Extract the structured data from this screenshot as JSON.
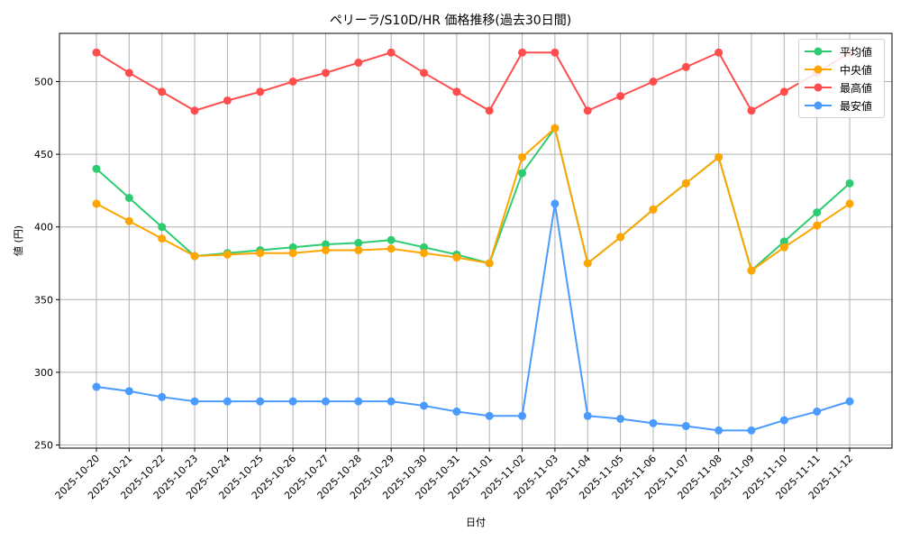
{
  "chart_data": {
    "type": "line",
    "title": "ペリーラ/S10D/HR 価格推移(過去30日間)",
    "xlabel": "日付",
    "ylabel": "値 (円)",
    "ylim": [
      245,
      533
    ],
    "yticks": [
      250,
      300,
      350,
      400,
      450,
      500
    ],
    "grid": true,
    "legend_position": "upper right",
    "categories": [
      "2025-10-20",
      "2025-10-21",
      "2025-10-22",
      "2025-10-23",
      "2025-10-24",
      "2025-10-25",
      "2025-10-26",
      "2025-10-27",
      "2025-10-28",
      "2025-10-29",
      "2025-10-30",
      "2025-10-31",
      "2025-11-01",
      "2025-11-02",
      "2025-11-03",
      "2025-11-04",
      "2025-11-05",
      "2025-11-06",
      "2025-11-07",
      "2025-11-08",
      "2025-11-09",
      "2025-11-10",
      "2025-11-11",
      "2025-11-12"
    ],
    "series": [
      {
        "name": "平均値",
        "color": "#2ecc71",
        "values": [
          440,
          420,
          400,
          380,
          382,
          384,
          386,
          388,
          389,
          391,
          386,
          381,
          375,
          437,
          468,
          375,
          393,
          412,
          430,
          448,
          370,
          390,
          410,
          430
        ]
      },
      {
        "name": "中央値",
        "color": "#ffa500",
        "values": [
          416,
          404,
          392,
          380,
          381,
          382,
          382,
          384,
          384,
          385,
          382,
          379,
          375,
          448,
          468,
          375,
          393,
          412,
          430,
          448,
          370,
          386,
          401,
          416
        ]
      },
      {
        "name": "最高値",
        "color": "#ff4d4d",
        "values": [
          520,
          506,
          493,
          480,
          487,
          493,
          500,
          506,
          513,
          520,
          506,
          493,
          480,
          520,
          520,
          480,
          490,
          500,
          510,
          520,
          480,
          493,
          506,
          520
        ]
      },
      {
        "name": "最安値",
        "color": "#4a9bff",
        "values": [
          290,
          287,
          283,
          280,
          280,
          280,
          280,
          280,
          280,
          280,
          277,
          273,
          270,
          270,
          416,
          270,
          268,
          265,
          263,
          260,
          260,
          267,
          273,
          280
        ]
      }
    ]
  }
}
